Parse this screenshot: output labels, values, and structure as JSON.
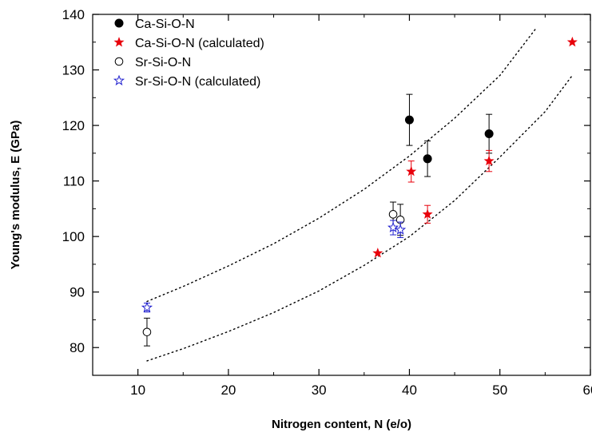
{
  "chart_data": {
    "type": "scatter",
    "xlabel": "Nitrogen content, N (e/o)",
    "ylabel": "Young's modulus, E (GPa)",
    "xlim": [
      5,
      60
    ],
    "ylim": [
      75,
      140
    ],
    "x_ticks": [
      10,
      20,
      30,
      40,
      50,
      60
    ],
    "y_ticks": [
      80,
      90,
      100,
      110,
      120,
      130,
      140
    ],
    "x_tick_labels": [
      "10",
      "20",
      "30",
      "40",
      "50",
      "60"
    ],
    "y_tick_labels": [
      "80",
      "90",
      "100",
      "110",
      "120",
      "130",
      "140"
    ],
    "grid": false,
    "legend_position": "top-left",
    "series": [
      {
        "name": "Ca-Si-O-N",
        "marker": "filled-circle",
        "color": "#000000",
        "points": [
          {
            "x": 40.0,
            "y": 121.0,
            "err": 4.6
          },
          {
            "x": 42.0,
            "y": 114.0,
            "err": 3.2
          },
          {
            "x": 48.8,
            "y": 118.5,
            "err": 3.5
          }
        ]
      },
      {
        "name": "Ca-Si-O-N (calculated)",
        "marker": "filled-star",
        "color": "#e8000b",
        "points": [
          {
            "x": 36.5,
            "y": 97.0,
            "err": null
          },
          {
            "x": 40.2,
            "y": 111.7,
            "err": 1.9
          },
          {
            "x": 42.0,
            "y": 104.0,
            "err": 1.6
          },
          {
            "x": 48.8,
            "y": 113.6,
            "err": 1.9
          },
          {
            "x": 58.0,
            "y": 135.0,
            "err": null
          }
        ]
      },
      {
        "name": "Sr-Si-O-N",
        "marker": "open-circle",
        "color": "#000000",
        "points": [
          {
            "x": 11.0,
            "y": 82.8,
            "err": 2.5
          },
          {
            "x": 38.2,
            "y": 104.0,
            "err": 2.2
          },
          {
            "x": 39.0,
            "y": 103.0,
            "err": 2.8
          }
        ]
      },
      {
        "name": "Sr-Si-O-N (calculated)",
        "marker": "open-star",
        "color": "#1f1fcf",
        "points": [
          {
            "x": 11.0,
            "y": 87.2,
            "err": 0.8
          },
          {
            "x": 38.2,
            "y": 101.6,
            "err": 1.3
          },
          {
            "x": 39.0,
            "y": 101.2,
            "err": 1.4
          }
        ]
      }
    ],
    "bounds": [
      {
        "style": "dotted",
        "color": "#000000",
        "points": [
          [
            11,
            88.3
          ],
          [
            15,
            91.0
          ],
          [
            20,
            94.7
          ],
          [
            25,
            98.7
          ],
          [
            30,
            103.3
          ],
          [
            35,
            108.5
          ],
          [
            40,
            114.5
          ],
          [
            45,
            121.3
          ],
          [
            50,
            129.0
          ],
          [
            54,
            137.5
          ]
        ]
      },
      {
        "style": "dotted",
        "color": "#000000",
        "points": [
          [
            11,
            77.6
          ],
          [
            15,
            79.8
          ],
          [
            20,
            82.9
          ],
          [
            25,
            86.3
          ],
          [
            30,
            90.2
          ],
          [
            35,
            94.8
          ],
          [
            40,
            100.0
          ],
          [
            45,
            106.5
          ],
          [
            50,
            114.3
          ],
          [
            55,
            122.5
          ],
          [
            58,
            129.0
          ]
        ]
      }
    ]
  }
}
